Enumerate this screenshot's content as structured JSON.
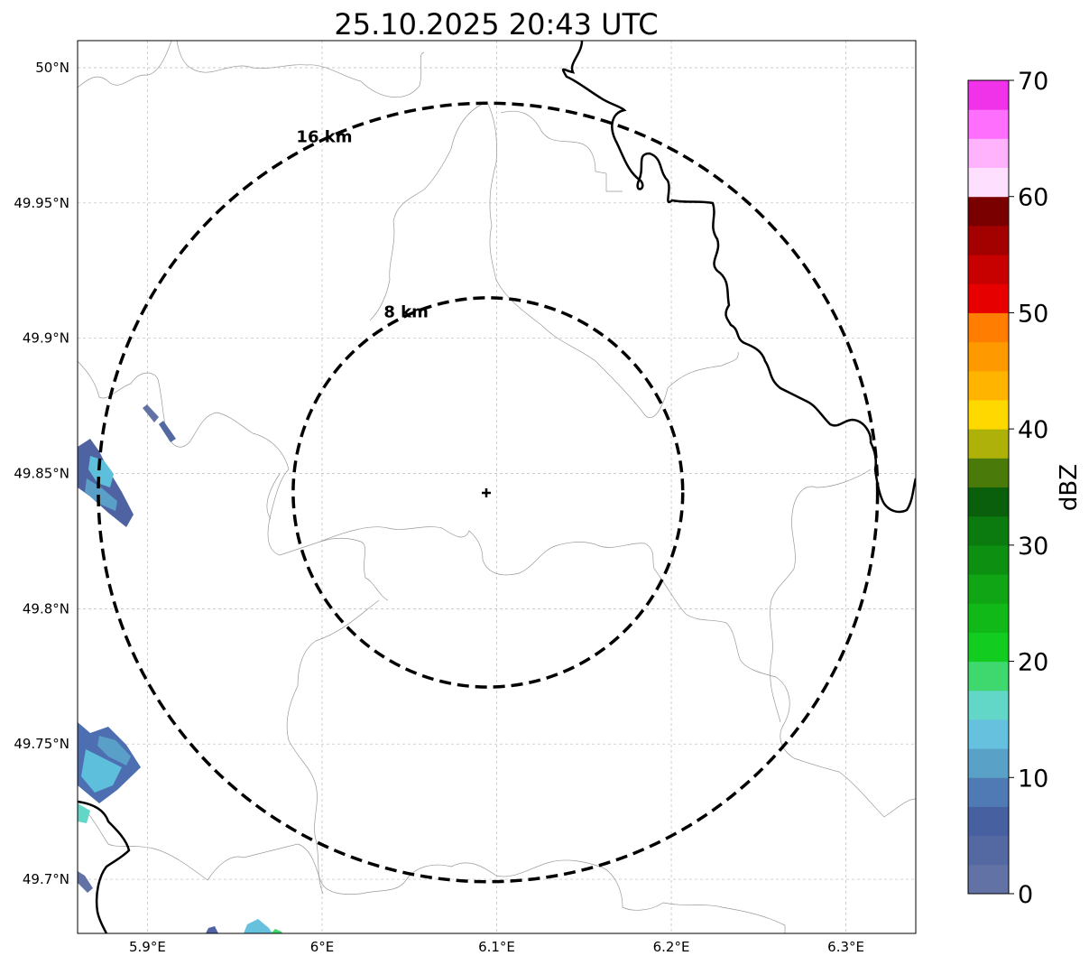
{
  "title": "25.10.2025 20:43 UTC",
  "map": {
    "lon_range": [
      5.86,
      6.34
    ],
    "lat_range": [
      49.68,
      50.01
    ],
    "center": {
      "lon": 6.095,
      "lat": 49.843
    },
    "lon_ticks": [
      {
        "value": 5.9,
        "label": "5.9°E"
      },
      {
        "value": 6.0,
        "label": "6°E"
      },
      {
        "value": 6.1,
        "label": "6.1°E"
      },
      {
        "value": 6.2,
        "label": "6.2°E"
      },
      {
        "value": 6.3,
        "label": "6.3°E"
      }
    ],
    "lat_ticks": [
      {
        "value": 50.0,
        "label": "50°N"
      },
      {
        "value": 49.95,
        "label": "49.95°N"
      },
      {
        "value": 49.9,
        "label": "49.9°N"
      },
      {
        "value": 49.85,
        "label": "49.85°N"
      },
      {
        "value": 49.8,
        "label": "49.8°N"
      },
      {
        "value": 49.75,
        "label": "49.75°N"
      },
      {
        "value": 49.7,
        "label": "49.7°N"
      }
    ],
    "rings": [
      {
        "radius_km": 8,
        "label": "8 km"
      },
      {
        "radius_km": 16,
        "label": "16 km"
      }
    ]
  },
  "colorbar": {
    "label": "dBZ",
    "min": 0,
    "max": 70,
    "step": 2.5,
    "tick_values": [
      0,
      10,
      20,
      30,
      40,
      50,
      60,
      70
    ],
    "tick_labels": [
      "0",
      "10",
      "20",
      "30",
      "40",
      "50",
      "60",
      "70"
    ],
    "colors": [
      "#6272a4",
      "#5469a1",
      "#4660a0",
      "#4f7ab3",
      "#5aa1c8",
      "#65c1dd",
      "#62d6c7",
      "#3ed86f",
      "#12cc20",
      "#10b818",
      "#0fa514",
      "#0d8f12",
      "#0b7a0f",
      "#095f0b",
      "#4a7a0a",
      "#adb109",
      "#ffd800",
      "#ffb400",
      "#ff9900",
      "#ff7d00",
      "#e60000",
      "#c70000",
      "#a30000",
      "#7a0000",
      "#ffdffe",
      "#ffb3fd",
      "#ff6ffd",
      "#f032e8"
    ]
  },
  "rain_cells_dbz": [
    {
      "id": "west-1",
      "dbz": 8
    },
    {
      "id": "west-2",
      "dbz": 12
    },
    {
      "id": "sw-1",
      "dbz": 10
    },
    {
      "id": "sw-2",
      "dbz": 15
    }
  ]
}
